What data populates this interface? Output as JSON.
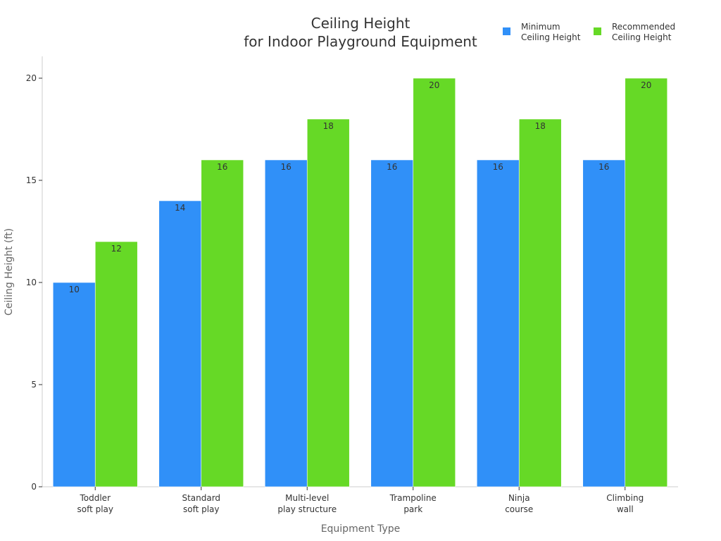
{
  "chart_data": {
    "type": "bar",
    "title": [
      "Ceiling Height",
      "for Indoor Playground Equipment"
    ],
    "xlabel": "Equipment Type",
    "ylabel": "Ceiling Height (ft)",
    "ylim": [
      0,
      20
    ],
    "yticks": [
      0,
      5,
      10,
      15,
      20
    ],
    "grid": false,
    "legend_position": "top-right",
    "categories": [
      [
        "Toddler",
        "soft play"
      ],
      [
        "Standard",
        "soft play"
      ],
      [
        "Multi-level",
        "play structure"
      ],
      [
        "Trampoline",
        "park"
      ],
      [
        "Ninja",
        "course"
      ],
      [
        "Climbing",
        "wall"
      ]
    ],
    "series": [
      {
        "name": [
          "Minimum",
          "Ceiling Height"
        ],
        "color": "#3090f8",
        "values": [
          10,
          14,
          16,
          16,
          16,
          16
        ]
      },
      {
        "name": [
          "Recommended",
          "Ceiling Height"
        ],
        "color": "#66d926",
        "values": [
          12,
          16,
          18,
          20,
          18,
          20
        ]
      }
    ]
  }
}
